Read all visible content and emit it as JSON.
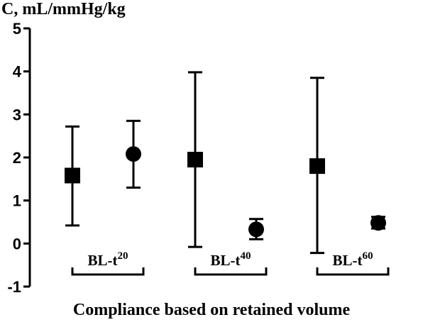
{
  "chart_data": {
    "type": "scatter",
    "ylabel": "C, mL/mmHg/kg",
    "xlabel": "Compliance based on retained volume",
    "ylim": [
      -1,
      5
    ],
    "yticks": [
      -1,
      0,
      1,
      2,
      3,
      4,
      5
    ],
    "groups": [
      {
        "label": "BL-t",
        "superscript": "20"
      },
      {
        "label": "BL-t",
        "superscript": "40"
      },
      {
        "label": "BL-t",
        "superscript": "60"
      }
    ],
    "series": [
      {
        "marker": "square",
        "values": [
          1.58,
          1.95,
          1.8
        ],
        "error_low": [
          0.42,
          -0.08,
          -0.22
        ],
        "error_high": [
          2.72,
          3.98,
          3.85
        ]
      },
      {
        "marker": "circle",
        "values": [
          2.08,
          0.33,
          0.48
        ],
        "error_low": [
          1.3,
          0.1,
          0.35
        ],
        "error_high": [
          2.85,
          0.57,
          0.62
        ]
      }
    ]
  }
}
